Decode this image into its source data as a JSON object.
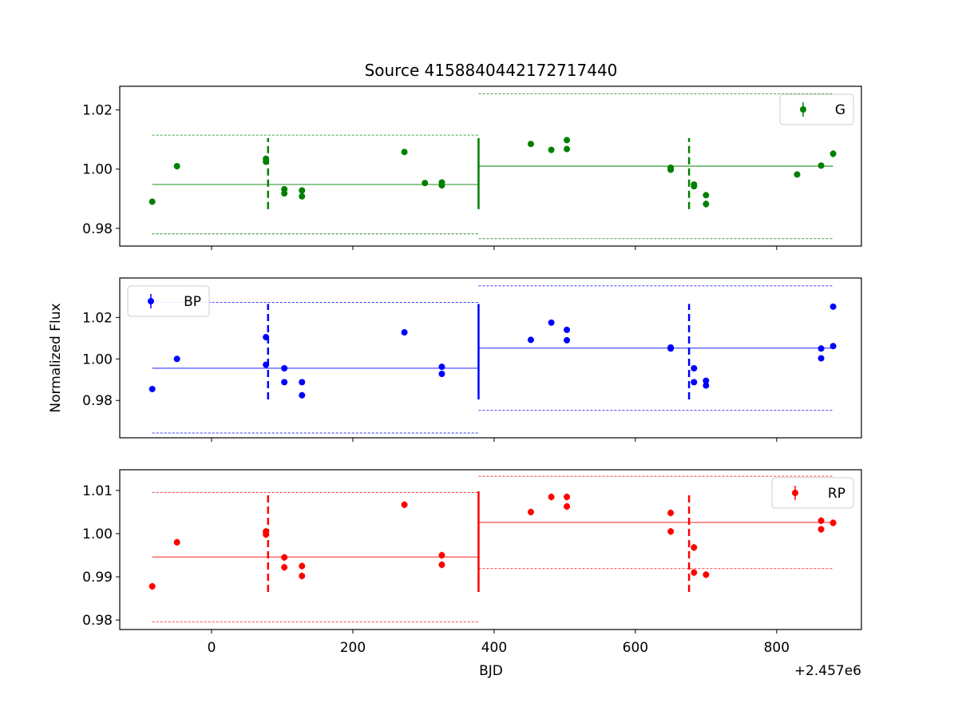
{
  "figure": {
    "title": "Source 4158840442172717440",
    "xlabel": "BJD",
    "ylabel": "Normalized Flux",
    "x_offset_label": "+2.457e6"
  },
  "chart_data": [
    {
      "type": "scatter",
      "legend": "G",
      "legend_position": "top-right",
      "color": "#008000",
      "xlim": [
        -130,
        920
      ],
      "ylim": [
        0.974,
        1.028
      ],
      "yticks": [
        0.98,
        1.0,
        1.02
      ],
      "ytick_labels": [
        "0.98",
        "1.00",
        "1.02"
      ],
      "xticks": [
        0,
        200,
        400,
        600,
        800
      ],
      "points": [
        {
          "x": -84,
          "y": 0.989,
          "err": 0.0008
        },
        {
          "x": -49,
          "y": 1.001,
          "err": 0.0008
        },
        {
          "x": 77,
          "y": 1.0035,
          "err": 0.0008
        },
        {
          "x": 77,
          "y": 1.0025,
          "err": 0.0008
        },
        {
          "x": 103,
          "y": 0.9932,
          "err": 0.0008
        },
        {
          "x": 103,
          "y": 0.9918,
          "err": 0.0008
        },
        {
          "x": 128,
          "y": 0.9928,
          "err": 0.0008
        },
        {
          "x": 128,
          "y": 0.9908,
          "err": 0.0008
        },
        {
          "x": 273,
          "y": 1.0058,
          "err": 0.0008
        },
        {
          "x": 302,
          "y": 0.9953,
          "err": 0.0008
        },
        {
          "x": 326,
          "y": 0.9955,
          "err": 0.0008
        },
        {
          "x": 326,
          "y": 0.9945,
          "err": 0.0008
        },
        {
          "x": 452,
          "y": 1.0085,
          "err": 0.0008
        },
        {
          "x": 481,
          "y": 1.0065,
          "err": 0.0008
        },
        {
          "x": 503,
          "y": 1.0098,
          "err": 0.0008
        },
        {
          "x": 503,
          "y": 1.0068,
          "err": 0.0008
        },
        {
          "x": 650,
          "y": 1.0005,
          "err": 0.0008
        },
        {
          "x": 650,
          "y": 0.9998,
          "err": 0.0008
        },
        {
          "x": 683,
          "y": 0.9948,
          "err": 0.0008
        },
        {
          "x": 683,
          "y": 0.9942,
          "err": 0.0008
        },
        {
          "x": 700,
          "y": 0.9912,
          "err": 0.0008
        },
        {
          "x": 700,
          "y": 0.9882,
          "err": 0.0012
        },
        {
          "x": 829,
          "y": 0.9982,
          "err": 0.0008
        },
        {
          "x": 863,
          "y": 1.0012,
          "err": 0.0008
        },
        {
          "x": 880,
          "y": 1.0052,
          "err": 0.0012
        }
      ],
      "segments": [
        {
          "x_start": -84,
          "x_end": 378,
          "mean": 0.9948,
          "upper": 1.0115,
          "lower": 0.9781
        },
        {
          "x_start": 378,
          "x_end": 880,
          "mean": 1.001,
          "upper": 1.0255,
          "lower": 0.9765
        }
      ],
      "dashed_markers": [
        80,
        676
      ],
      "solid_marker": 378,
      "marker_range": [
        0.9865,
        1.0105
      ]
    },
    {
      "type": "scatter",
      "legend": "BP",
      "legend_position": "top-left",
      "color": "#0000ff",
      "xlim": [
        -130,
        920
      ],
      "ylim": [
        0.962,
        1.039
      ],
      "yticks": [
        0.98,
        1.0,
        1.02
      ],
      "ytick_labels": [
        "0.98",
        "1.00",
        "1.02"
      ],
      "xticks": [
        0,
        200,
        400,
        600,
        800
      ],
      "points": [
        {
          "x": -84,
          "y": 0.9855,
          "err": 0.0015
        },
        {
          "x": -49,
          "y": 1.0,
          "err": 0.0012
        },
        {
          "x": 77,
          "y": 1.0105,
          "err": 0.0015
        },
        {
          "x": 77,
          "y": 0.9972,
          "err": 0.0012
        },
        {
          "x": 103,
          "y": 0.9955,
          "err": 0.0012
        },
        {
          "x": 103,
          "y": 0.9888,
          "err": 0.0012
        },
        {
          "x": 128,
          "y": 0.9888,
          "err": 0.0012
        },
        {
          "x": 128,
          "y": 0.9825,
          "err": 0.0012
        },
        {
          "x": 273,
          "y": 1.0128,
          "err": 0.0012
        },
        {
          "x": 326,
          "y": 0.9962,
          "err": 0.0012
        },
        {
          "x": 326,
          "y": 0.9928,
          "err": 0.0012
        },
        {
          "x": 452,
          "y": 1.0092,
          "err": 0.0012
        },
        {
          "x": 481,
          "y": 1.0175,
          "err": 0.0012
        },
        {
          "x": 503,
          "y": 1.014,
          "err": 0.0012
        },
        {
          "x": 503,
          "y": 1.009,
          "err": 0.0012
        },
        {
          "x": 650,
          "y": 1.0055,
          "err": 0.0012
        },
        {
          "x": 650,
          "y": 1.005,
          "err": 0.0012
        },
        {
          "x": 683,
          "y": 0.9955,
          "err": 0.0012
        },
        {
          "x": 683,
          "y": 0.9888,
          "err": 0.0012
        },
        {
          "x": 700,
          "y": 0.9895,
          "err": 0.0012
        },
        {
          "x": 700,
          "y": 0.9872,
          "err": 0.0012
        },
        {
          "x": 863,
          "y": 1.005,
          "err": 0.0012
        },
        {
          "x": 863,
          "y": 1.0003,
          "err": 0.0012
        },
        {
          "x": 880,
          "y": 1.0252,
          "err": 0.0012
        },
        {
          "x": 880,
          "y": 1.0062,
          "err": 0.0012
        }
      ],
      "segments": [
        {
          "x_start": -84,
          "x_end": 378,
          "mean": 0.9955,
          "upper": 1.0272,
          "lower": 0.9643
        },
        {
          "x_start": 378,
          "x_end": 880,
          "mean": 1.0052,
          "upper": 1.0352,
          "lower": 0.9752
        }
      ],
      "dashed_markers": [
        80,
        676
      ],
      "solid_marker": 378,
      "marker_range": [
        0.9805,
        1.0265
      ]
    },
    {
      "type": "scatter",
      "legend": "RP",
      "legend_position": "top-right",
      "color": "#ff0000",
      "xlim": [
        -130,
        920
      ],
      "ylim": [
        0.9778,
        1.0148
      ],
      "yticks": [
        0.98,
        0.99,
        1.0,
        1.01
      ],
      "ytick_labels": [
        "0.98",
        "0.99",
        "1.00",
        "1.01"
      ],
      "xticks": [
        0,
        200,
        400,
        600,
        800
      ],
      "xtick_labels": [
        "0",
        "200",
        "400",
        "600",
        "800"
      ],
      "points": [
        {
          "x": -84,
          "y": 0.9878,
          "err": 0.0008
        },
        {
          "x": -49,
          "y": 0.998,
          "err": 0.0008
        },
        {
          "x": 77,
          "y": 1.0005,
          "err": 0.0008
        },
        {
          "x": 77,
          "y": 0.9998,
          "err": 0.0008
        },
        {
          "x": 103,
          "y": 0.9945,
          "err": 0.0008
        },
        {
          "x": 103,
          "y": 0.9922,
          "err": 0.0008
        },
        {
          "x": 128,
          "y": 0.9925,
          "err": 0.0008
        },
        {
          "x": 128,
          "y": 0.9902,
          "err": 0.0008
        },
        {
          "x": 273,
          "y": 1.0067,
          "err": 0.0008
        },
        {
          "x": 326,
          "y": 0.995,
          "err": 0.0008
        },
        {
          "x": 326,
          "y": 0.9928,
          "err": 0.0008
        },
        {
          "x": 452,
          "y": 1.005,
          "err": 0.0008
        },
        {
          "x": 481,
          "y": 1.0085,
          "err": 0.0008
        },
        {
          "x": 503,
          "y": 1.0085,
          "err": 0.0008
        },
        {
          "x": 503,
          "y": 1.0063,
          "err": 0.0008
        },
        {
          "x": 650,
          "y": 1.0048,
          "err": 0.0008
        },
        {
          "x": 650,
          "y": 1.0005,
          "err": 0.0008
        },
        {
          "x": 683,
          "y": 0.9968,
          "err": 0.0008
        },
        {
          "x": 683,
          "y": 0.991,
          "err": 0.0008
        },
        {
          "x": 700,
          "y": 0.9905,
          "err": 0.0008
        },
        {
          "x": 863,
          "y": 1.003,
          "err": 0.0008
        },
        {
          "x": 863,
          "y": 1.001,
          "err": 0.0008
        },
        {
          "x": 880,
          "y": 1.0025,
          "err": 0.0008
        }
      ],
      "segments": [
        {
          "x_start": -84,
          "x_end": 378,
          "mean": 0.9946,
          "upper": 1.0095,
          "lower": 0.9796
        },
        {
          "x_start": 378,
          "x_end": 880,
          "mean": 1.0026,
          "upper": 1.0133,
          "lower": 0.9919
        }
      ],
      "dashed_markers": [
        80,
        676
      ],
      "solid_marker": 378,
      "marker_range": [
        0.9865,
        1.0098
      ]
    }
  ]
}
